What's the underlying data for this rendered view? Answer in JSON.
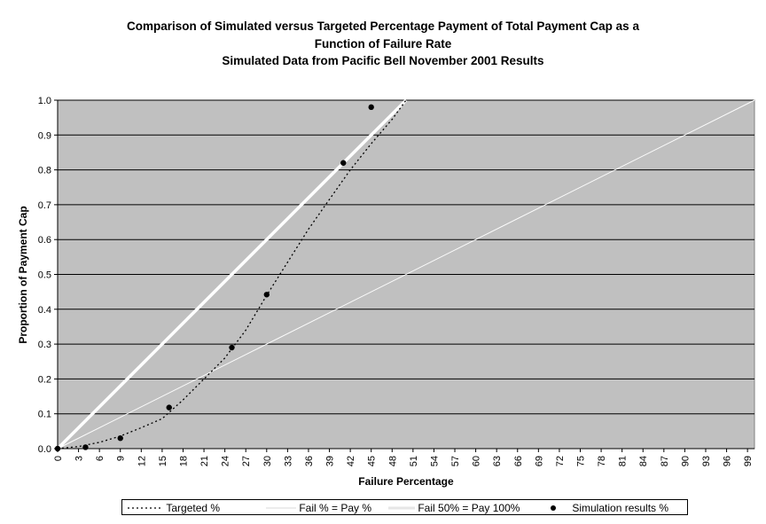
{
  "chart_data": {
    "type": "line",
    "title": [
      "Comparison of Simulated versus Targeted Percentage Payment of Total Payment Cap as a",
      "Function of Failure Rate",
      "Simulated Data from Pacific Bell November 2001 Results"
    ],
    "xlabel": "Failure Percentage",
    "ylabel": "Proportion of Payment Cap",
    "xlim": [
      0,
      100
    ],
    "ylim": [
      0,
      1.0
    ],
    "x_ticks": [
      "0",
      "3",
      "6",
      "9",
      "12",
      "15",
      "18",
      "21",
      "24",
      "27",
      "30",
      "33",
      "36",
      "39",
      "42",
      "45",
      "48",
      "51",
      "54",
      "57",
      "60",
      "63",
      "66",
      "69",
      "72",
      "75",
      "78",
      "81",
      "84",
      "87",
      "90",
      "93",
      "96",
      "99"
    ],
    "y_ticks": [
      "0.0",
      "0.1",
      "0.2",
      "0.3",
      "0.4",
      "0.5",
      "0.6",
      "0.7",
      "0.8",
      "0.9",
      "1.0"
    ],
    "grid": "horizontal",
    "legend_position": "bottom",
    "plot_background": "#c0c0c0",
    "series": [
      {
        "name": "Targeted %",
        "style": "dotted",
        "color": "#000000",
        "x": [
          0,
          3,
          6,
          9,
          12,
          15,
          18,
          21,
          24,
          27,
          30,
          33,
          36,
          39,
          42,
          45,
          48,
          50
        ],
        "y": [
          0.0,
          0.006,
          0.018,
          0.036,
          0.06,
          0.086,
          0.14,
          0.2,
          0.26,
          0.34,
          0.44,
          0.535,
          0.63,
          0.715,
          0.8,
          0.875,
          0.945,
          1.0
        ]
      },
      {
        "name": "Fail % = Pay %",
        "style": "solid-thin",
        "color": "#ffffff",
        "x": [
          0,
          100
        ],
        "y": [
          0.0,
          1.0
        ]
      },
      {
        "name": "Fail 50% = Pay 100%",
        "style": "solid-thick",
        "color": "#ffffff",
        "x": [
          0,
          50
        ],
        "y": [
          0.0,
          1.0
        ]
      },
      {
        "name": "Simulation results %",
        "style": "markers",
        "color": "#000000",
        "x": [
          0,
          4,
          9,
          16,
          25,
          30,
          41,
          45
        ],
        "y": [
          0.0,
          0.004,
          0.03,
          0.118,
          0.29,
          0.442,
          0.82,
          0.98
        ]
      }
    ]
  }
}
